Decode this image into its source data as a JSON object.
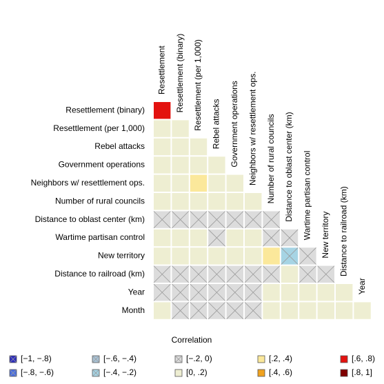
{
  "chart_data": {
    "type": "heatmap",
    "x_labels": [
      "Resettlement",
      "Resettlement (binary)",
      "Resettlement (per 1,000)",
      "Rebel attacks",
      "Government operations",
      "Neighbors w/ resettlement ops.",
      "Number of rural councils",
      "Distance to oblast center (km)",
      "Wartime partisan control",
      "New territory",
      "Distance to railroad (km)",
      "Year"
    ],
    "y_labels": [
      "Resettlement (binary)",
      "Resettlement (per 1,000)",
      "Rebel attacks",
      "Government operations",
      "Neighbors w/ resettlement ops.",
      "Number of rural councils",
      "Distance to oblast center (km)",
      "Wartime partisan control",
      "New territory",
      "Distance to railroad (km)",
      "Year",
      "Month"
    ],
    "values": [
      [
        0.7
      ],
      [
        0.1,
        0.1
      ],
      [
        0.1,
        0.1,
        0.1
      ],
      [
        0.1,
        0.1,
        0.1,
        0.1
      ],
      [
        0.1,
        0.1,
        0.3,
        0.1,
        0.1
      ],
      [
        0.1,
        0.1,
        0.1,
        0.1,
        0.1,
        0.1
      ],
      [
        -0.1,
        -0.1,
        -0.1,
        -0.1,
        -0.1,
        -0.1,
        -0.1
      ],
      [
        0.1,
        0.1,
        0.1,
        -0.1,
        0.1,
        0.1,
        -0.1,
        -0.1
      ],
      [
        0.1,
        0.1,
        0.1,
        0.1,
        0.1,
        0.1,
        0.3,
        -0.3,
        -0.1
      ],
      [
        -0.1,
        -0.1,
        -0.1,
        -0.1,
        -0.1,
        -0.1,
        -0.1,
        0.1,
        -0.1,
        -0.1
      ],
      [
        -0.1,
        -0.1,
        -0.1,
        -0.1,
        -0.1,
        -0.1,
        0.1,
        0.1,
        0.1,
        0.1,
        0.1
      ],
      [
        0.1,
        -0.1,
        -0.1,
        -0.1,
        -0.1,
        -0.1,
        0.1,
        0.1,
        0.1,
        0.1,
        0.1,
        0.1
      ]
    ],
    "legend_title": "Correlation",
    "bins": [
      -1,
      -0.8,
      -0.6,
      -0.4,
      -0.2,
      0,
      0.2,
      0.4,
      0.6,
      0.8,
      1
    ],
    "bin_labels": [
      "[−1, −.8)",
      "[−.8, −.6)",
      "[−.6, −.4)",
      "[−.4, −.2)",
      "[−.2, 0)",
      "[0, .2)",
      "[.2, .4)",
      "[.4, .6)",
      "[.6, .8)",
      "[.8, 1]"
    ],
    "bin_colors": [
      "#2b2bbf",
      "#4a6fe3",
      "#a9c3d6",
      "#a6d4e4",
      "#dcdcdc",
      "#eeeed2",
      "#fbe89b",
      "#f0a21f",
      "#e3120f",
      "#7f0000"
    ],
    "cross_negative": true
  }
}
